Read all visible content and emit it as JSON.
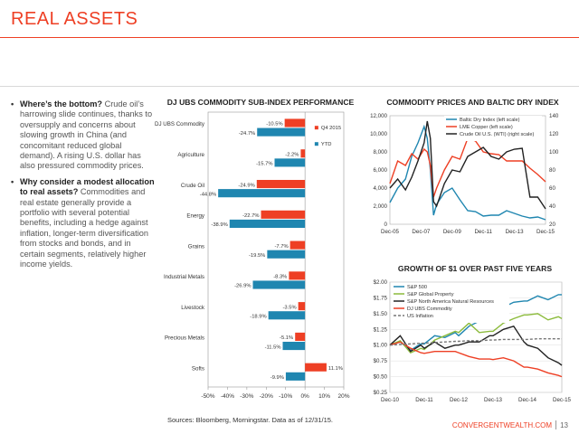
{
  "page": {
    "title": "REAL ASSETS",
    "footnote": "Sources: Bloomberg, Morningstar. Data as of 12/31/15.",
    "brand": "CONVERGENTWEALTH.COM",
    "page_number": "13",
    "accent_color": "#ee3f24"
  },
  "bullets": [
    {
      "bold": "Where’s the bottom?",
      "text": " Crude oil’s harrowing slide continues, thanks to oversupply and concerns about slowing growth in China (and concomitant reduced global demand). A rising U.S. dollar has also pressured commodity prices."
    },
    {
      "bold": "Why consider a modest allocation to real assets?",
      "text": " Commodities and real estate generally provide a portfolio with several potential benefits, including a hedge against inflation, longer-term diversification from stocks and bonds, and in certain segments, relatively higher income yields."
    }
  ],
  "chart_data": [
    {
      "type": "bar",
      "title": "DJ UBS COMMODITY SUB-INDEX PERFORMANCE",
      "categories": [
        "DJ UBS Commodity",
        "Agriculture",
        "Crude Oil",
        "Energy",
        "Grains",
        "Industrial Metals",
        "Livestock",
        "Precious Metals",
        "Softs"
      ],
      "series": [
        {
          "name": "Q4 2015",
          "color": "#ee3f24",
          "values": [
            -10.5,
            -2.2,
            -24.9,
            -22.7,
            -7.7,
            -8.3,
            -3.5,
            -5.1,
            11.1
          ],
          "labels": [
            "-10.5%",
            "-2.2%",
            "-24.9%",
            "-22.7%",
            "-7.7%",
            "-8.3%",
            "-3.5%",
            "-5.1%",
            "11.1%"
          ]
        },
        {
          "name": "YTD",
          "color": "#1f86b0",
          "values": [
            -24.7,
            -15.7,
            -44.8,
            -38.9,
            -19.5,
            -26.9,
            -18.9,
            -11.5,
            -9.9
          ],
          "labels": [
            "-24.7%",
            "-15.7%",
            "-44.8%",
            "-38.9%",
            "-19.5%",
            "-26.9%",
            "-18.9%",
            "-11.5%",
            "-9.9%"
          ]
        }
      ],
      "xlim": [
        -50,
        20
      ],
      "xticks": [
        -50,
        -40,
        -30,
        -20,
        -10,
        0,
        10,
        20
      ],
      "xtick_labels": [
        "-50%",
        "-40%",
        "-30%",
        "-20%",
        "-10%",
        "0%",
        "10%",
        "20%"
      ],
      "legend": "right"
    },
    {
      "type": "line",
      "title": "COMMODITY PRICES AND BALTIC DRY INDEX",
      "x_labels": [
        "Dec-05",
        "Dec-07",
        "Dec-09",
        "Dec-11",
        "Dec-13",
        "Dec-15"
      ],
      "x": [
        2006,
        2006.5,
        2007,
        2007.4,
        2007.8,
        2008.2,
        2008.4,
        2008.6,
        2008.8,
        2009,
        2009.5,
        2010,
        2010.5,
        2011,
        2011.5,
        2012,
        2012.5,
        2013,
        2013.5,
        2014,
        2014.5,
        2015,
        2015.5,
        2016
      ],
      "ylim_left": [
        0,
        12000
      ],
      "yticks_left": [
        0,
        2000,
        4000,
        6000,
        8000,
        10000,
        12000
      ],
      "ytick_labels_left": [
        "0",
        "2,000",
        "4,000",
        "6,000",
        "8,000",
        "10,000",
        "12,000"
      ],
      "ylim_right": [
        20,
        140
      ],
      "yticks_right": [
        20,
        40,
        60,
        80,
        100,
        120,
        140
      ],
      "series": [
        {
          "name": "Baltic Dry Index (left scale)",
          "color": "#1f86b0",
          "axis": "left",
          "values": [
            2400,
            4000,
            5000,
            7500,
            9000,
            10800,
            9500,
            6000,
            1000,
            2200,
            3500,
            4000,
            2700,
            1500,
            1400,
            900,
            1000,
            1000,
            1500,
            1200,
            900,
            700,
            800,
            500
          ]
        },
        {
          "name": "LME Copper (left scale)",
          "color": "#ee3f24",
          "axis": "left",
          "values": [
            4500,
            7000,
            6500,
            7800,
            7200,
            8300,
            8000,
            6500,
            3000,
            4000,
            6000,
            7500,
            7200,
            9500,
            9200,
            8000,
            7800,
            7700,
            7000,
            7000,
            7000,
            6200,
            5500,
            4700
          ]
        },
        {
          "name": "Crude Oil U.S. (WTI) (right scale)",
          "color": "#222222",
          "axis": "right",
          "values": [
            60,
            70,
            58,
            72,
            90,
            110,
            134,
            115,
            45,
            40,
            65,
            80,
            78,
            95,
            100,
            105,
            95,
            92,
            100,
            103,
            104,
            50,
            50,
            37
          ]
        }
      ],
      "legend": "top-right"
    },
    {
      "type": "line",
      "title": "GROWTH OF $1 OVER PAST FIVE YEARS",
      "x_labels": [
        "Dec-10",
        "Dec-11",
        "Dec-12",
        "Dec-13",
        "Dec-14",
        "Dec-15"
      ],
      "x": [
        2011,
        2011.3,
        2011.6,
        2011.9,
        2012,
        2012.3,
        2012.6,
        2012.9,
        2013,
        2013.3,
        2013.6,
        2013.9,
        2014,
        2014.3,
        2014.6,
        2014.9,
        2015,
        2015.3,
        2015.6,
        2015.9,
        2016
      ],
      "ylim": [
        0.25,
        2.0
      ],
      "yticks": [
        0.25,
        0.5,
        0.75,
        1.0,
        1.25,
        1.5,
        1.75,
        2.0
      ],
      "ytick_labels": [
        "$0.25",
        "$0.50",
        "$0.75",
        "$1.00",
        "$1.25",
        "$1.50",
        "$1.75",
        "$2.00"
      ],
      "series": [
        {
          "name": "S&P 500",
          "color": "#1f86b0",
          "dashed": false,
          "values": [
            1.0,
            1.05,
            0.92,
            1.02,
            1.02,
            1.15,
            1.12,
            1.2,
            1.15,
            1.3,
            1.38,
            1.5,
            1.5,
            1.6,
            1.68,
            1.7,
            1.7,
            1.78,
            1.72,
            1.8,
            1.8
          ]
        },
        {
          "name": "S&P Global Property",
          "color": "#8cbb3c",
          "dashed": false,
          "values": [
            1.0,
            1.07,
            0.88,
            0.95,
            0.93,
            1.08,
            1.15,
            1.22,
            1.2,
            1.35,
            1.2,
            1.22,
            1.22,
            1.35,
            1.42,
            1.48,
            1.48,
            1.5,
            1.4,
            1.45,
            1.42
          ]
        },
        {
          "name": "S&P North America Natural Resources",
          "color": "#222222",
          "dashed": false,
          "values": [
            1.0,
            1.15,
            0.9,
            1.0,
            0.95,
            1.05,
            0.95,
            1.0,
            1.0,
            1.05,
            1.05,
            1.15,
            1.15,
            1.25,
            1.3,
            1.05,
            1.0,
            0.95,
            0.8,
            0.72,
            0.68
          ]
        },
        {
          "name": "DJ UBS Commodity",
          "color": "#ee3f24",
          "dashed": false,
          "values": [
            1.0,
            1.05,
            0.95,
            0.88,
            0.87,
            0.9,
            0.9,
            0.9,
            0.88,
            0.82,
            0.78,
            0.78,
            0.77,
            0.8,
            0.75,
            0.65,
            0.65,
            0.62,
            0.56,
            0.52,
            0.5
          ]
        },
        {
          "name": "US Inflation",
          "color": "#777777",
          "dashed": true,
          "values": [
            1.0,
            1.01,
            1.02,
            1.03,
            1.03,
            1.04,
            1.05,
            1.06,
            1.06,
            1.07,
            1.07,
            1.08,
            1.08,
            1.09,
            1.09,
            1.09,
            1.09,
            1.1,
            1.1,
            1.1,
            1.1
          ]
        }
      ],
      "legend": "top-left"
    }
  ]
}
